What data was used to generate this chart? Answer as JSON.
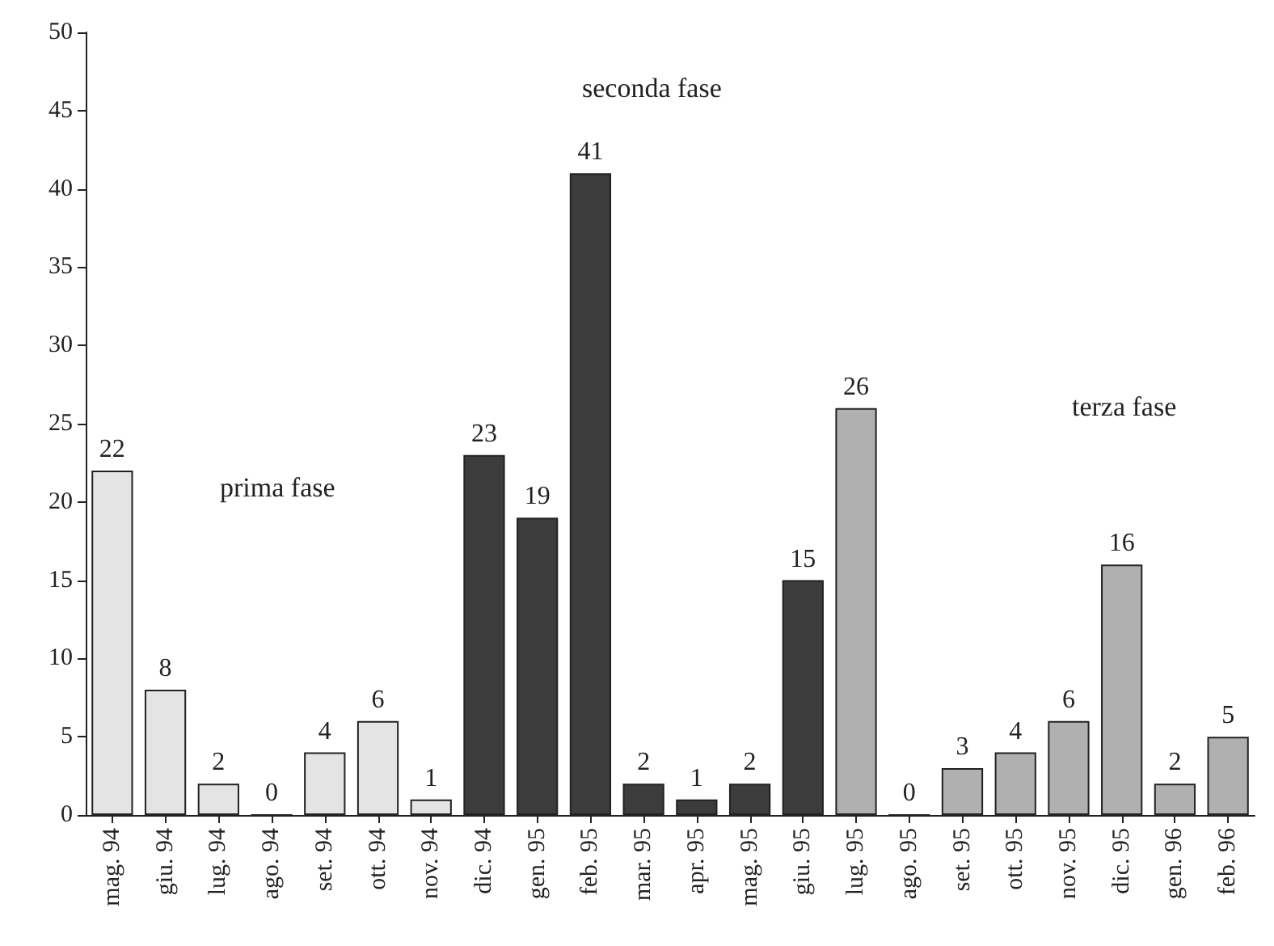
{
  "chart_data": {
    "type": "bar",
    "categories": [
      "mag. 94",
      "giu. 94",
      "lug. 94",
      "ago. 94",
      "set. 94",
      "ott. 94",
      "nov. 94",
      "dic. 94",
      "gen. 95",
      "feb. 95",
      "mar. 95",
      "apr. 95",
      "mag. 95",
      "giu. 95",
      "lug. 95",
      "ago. 95",
      "set. 95",
      "ott. 95",
      "nov. 95",
      "dic. 95",
      "gen. 96",
      "feb. 96"
    ],
    "values": [
      22,
      8,
      2,
      0,
      4,
      6,
      1,
      23,
      19,
      41,
      2,
      1,
      2,
      15,
      26,
      0,
      3,
      4,
      6,
      16,
      2,
      5
    ],
    "colors": [
      "#e4e4e4",
      "#e4e4e4",
      "#e4e4e4",
      "#e4e4e4",
      "#e4e4e4",
      "#e4e4e4",
      "#e4e4e4",
      "#3c3c3c",
      "#3c3c3c",
      "#3c3c3c",
      "#3c3c3c",
      "#3c3c3c",
      "#3c3c3c",
      "#3c3c3c",
      "#b0b0b0",
      "#b0b0b0",
      "#b0b0b0",
      "#b0b0b0",
      "#b0b0b0",
      "#b0b0b0",
      "#b0b0b0",
      "#b0b0b0"
    ],
    "ylim": [
      0,
      50
    ],
    "yticks": [
      0,
      5,
      10,
      15,
      20,
      25,
      30,
      35,
      40,
      45,
      50
    ],
    "grid": false,
    "data_labels": true,
    "annotations": [
      "prima fase",
      "seconda fase",
      "terza fase"
    ]
  }
}
